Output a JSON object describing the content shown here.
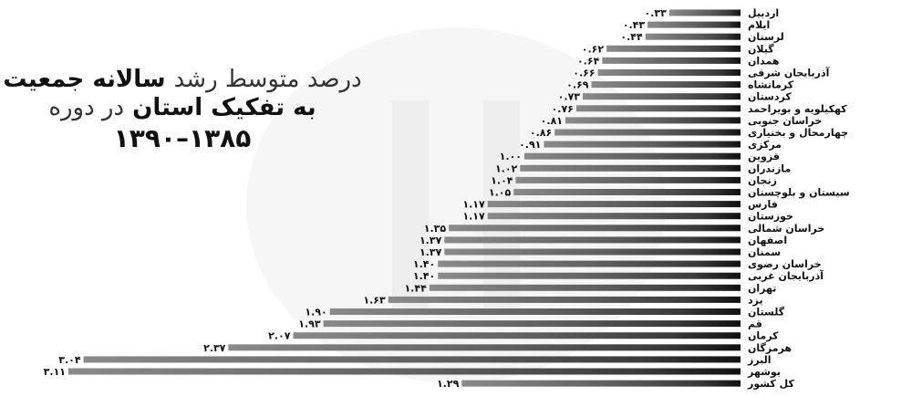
{
  "title": {
    "line1_light": "درصد متوسط رشد",
    "line1_bold": "سالانه جمعیت",
    "line2_bold": "به تفکیک استان",
    "line2_light": "در دوره",
    "line3": "۱۳۸۵–۱۳۹۰"
  },
  "colors": {
    "bar_dark": "#1a1a1a",
    "bar_mid": "#6b6b6b",
    "text": "#111111"
  },
  "chart_data": {
    "type": "bar",
    "orientation": "horizontal",
    "categories": [
      "اردبیل",
      "ایلام",
      "لرستان",
      "گیلان",
      "همدان",
      "آذربایجان شرقی",
      "کرمانشاه",
      "کردستان",
      "کهکیلویه و بویراحمد",
      "خراسان جنوبی",
      "چهارمحال و بختیاری",
      "مرکزی",
      "قزوین",
      "مازندران",
      "زنجان",
      "سیستان و بلوچستان",
      "فارس",
      "خوزستان",
      "خراسان شمالی",
      "اصفهان",
      "سمنان",
      "خراسان رضوی",
      "آذربایجان غربی",
      "تهران",
      "یزد",
      "گلستان",
      "قم",
      "کرمان",
      "هرمزگان",
      "البرز",
      "بوشهر",
      "کل کشور"
    ],
    "values": [
      0.33,
      0.43,
      0.44,
      0.62,
      0.64,
      0.66,
      0.69,
      0.73,
      0.76,
      0.81,
      0.86,
      0.91,
      1.0,
      1.02,
      1.04,
      1.05,
      1.17,
      1.17,
      1.35,
      1.37,
      1.37,
      1.4,
      1.4,
      1.44,
      1.63,
      1.9,
      1.93,
      2.07,
      2.37,
      3.04,
      3.11,
      1.29
    ],
    "value_labels": [
      "۰.۳۳",
      "۰.۴۳",
      "۰.۴۴",
      "۰.۶۲",
      "۰.۶۴",
      "۰.۶۶",
      "۰.۶۹",
      "۰.۷۳",
      "۰.۷۶",
      "۰.۸۱",
      "۰.۸۶",
      "۰.۹۱",
      "۱.۰۰",
      "۱.۰۲",
      "۱.۰۴",
      "۱.۰۵",
      "۱.۱۷",
      "۱.۱۷",
      "۱.۳۵",
      "۱.۳۷",
      "۱.۳۷",
      "۱.۴۰",
      "۱.۴۰",
      "۱.۴۴",
      "۱.۶۳",
      "۱.۹۰",
      "۱.۹۳",
      "۲.۰۷",
      "۲.۳۷",
      "۳.۰۴",
      "۳.۱۱",
      "۱.۲۹"
    ],
    "grid": false,
    "legend": "none"
  }
}
